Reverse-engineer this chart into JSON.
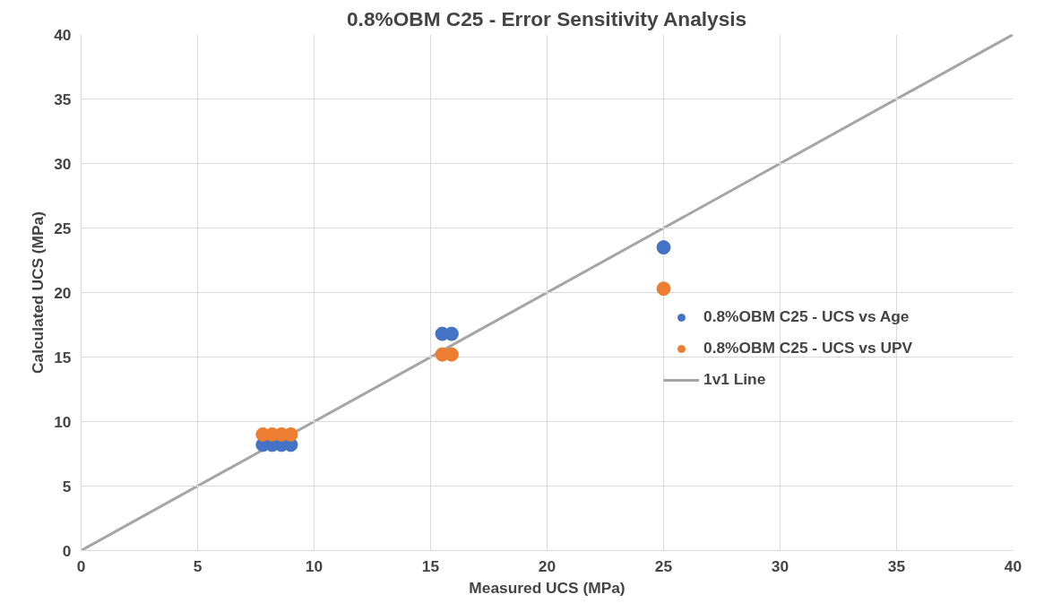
{
  "chart_data": {
    "type": "scatter",
    "title": "0.8%OBM C25 - Error Sensitivity Analysis",
    "xlabel": "Measured UCS (MPa)",
    "ylabel": "Calculated UCS (MPa)",
    "series": [
      {
        "name": "0.8%OBM C25 - UCS vs Age",
        "color": "#4472c4",
        "marker": "circle",
        "x": [
          7.8,
          8.2,
          8.6,
          9.0,
          15.5,
          15.9,
          25.0
        ],
        "values": [
          8.2,
          8.2,
          8.2,
          8.2,
          16.8,
          16.8,
          23.5
        ]
      },
      {
        "name": "0.8%OBM C25 - UCS vs UPV",
        "color": "#ed7d31",
        "marker": "circle",
        "x": [
          7.8,
          8.2,
          8.6,
          9.0,
          15.5,
          15.9,
          25.0
        ],
        "values": [
          9.0,
          9.0,
          9.0,
          9.0,
          15.2,
          15.2,
          20.3
        ]
      },
      {
        "name": "1v1 Line",
        "type": "line",
        "color": "#a5a5a5",
        "x": [
          0,
          40
        ],
        "values": [
          0,
          40
        ]
      }
    ],
    "xlim": [
      0,
      40
    ],
    "ylim": [
      0,
      40
    ],
    "xticks": [
      0,
      5,
      10,
      15,
      20,
      25,
      30,
      35,
      40
    ],
    "yticks": [
      0,
      5,
      10,
      15,
      20,
      25,
      30,
      35,
      40
    ],
    "grid": true,
    "legend": "right"
  }
}
